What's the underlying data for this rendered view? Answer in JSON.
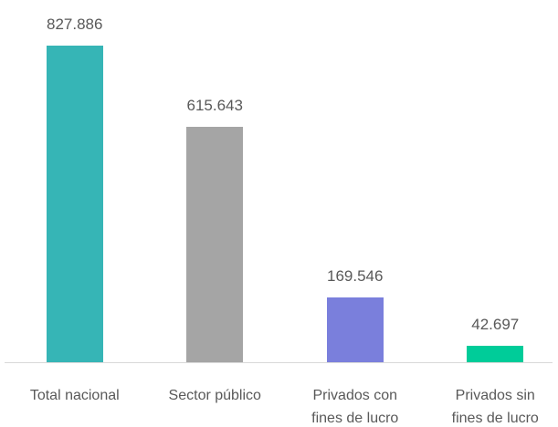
{
  "chart_data": {
    "type": "bar",
    "categories": [
      "Total nacional",
      "Sector público",
      "Privados con\nfines de lucro",
      "Privados sin\nfines de lucro"
    ],
    "values": [
      827886,
      615643,
      169546,
      42697
    ],
    "value_labels": [
      "827.886",
      "615.643",
      "169.546",
      "42.697"
    ],
    "colors": [
      "#36b5b6",
      "#a5a5a5",
      "#7a7fdc",
      "#00cc99"
    ]
  }
}
